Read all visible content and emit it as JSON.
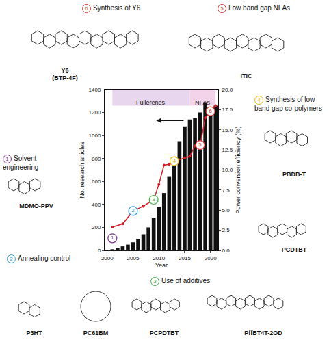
{
  "chart_data": {
    "type": "bar",
    "xlabel": "Year",
    "ylabel": "No. research articles",
    "y2label": "Power conversion efficiency (%)",
    "xlim": [
      1999.5,
      2021.5
    ],
    "xticks": [
      2000,
      2005,
      2010,
      2015,
      2020
    ],
    "ylim": [
      0,
      1400
    ],
    "yticks": [
      0,
      200,
      400,
      600,
      800,
      1000,
      1200,
      1400
    ],
    "y2lim": [
      0,
      20
    ],
    "y2ticks": [
      {
        "value": 0,
        "label": "0.0"
      },
      2.5,
      {
        "value": 5,
        "label": "5.0"
      },
      7.5,
      {
        "value": 10,
        "label": "10.0"
      },
      12.5,
      {
        "value": 15,
        "label": "15.0"
      },
      17.5,
      {
        "value": 20,
        "label": "20.0"
      }
    ],
    "grid": false,
    "series": [
      {
        "type": "bar",
        "color": "#111111",
        "x": [
          2000,
          2001,
          2002,
          2003,
          2004,
          2005,
          2006,
          2007,
          2008,
          2009,
          2010,
          2011,
          2012,
          2013,
          2014,
          2015,
          2016,
          2017,
          2018,
          2019,
          2020,
          2021
        ],
        "values": [
          5,
          10,
          20,
          35,
          50,
          70,
          100,
          140,
          200,
          280,
          380,
          500,
          640,
          800,
          950,
          1080,
          1140,
          1150,
          1200,
          1290,
          1190,
          1260
        ]
      },
      {
        "type": "line",
        "axis": "y2",
        "color": "#d0202b",
        "marker": "circle",
        "x": [
          2001,
          2003,
          2005,
          2007,
          2009,
          2010,
          2011,
          2012,
          2013,
          2015,
          2016,
          2017,
          2018,
          2019,
          2020,
          2021
        ],
        "values": [
          2.9,
          3.3,
          4.9,
          5.5,
          6.3,
          8.2,
          10.6,
          10.7,
          11.1,
          11.5,
          11.7,
          13.0,
          13.1,
          16.5,
          17.3,
          18.0
        ]
      }
    ],
    "periods": [
      {
        "label": "Fullerenes",
        "start": 2001,
        "end": 2016,
        "color": "#e8d6ee"
      },
      {
        "label": "NFAs",
        "start": 2016,
        "end": 2021,
        "color": "#f3d3ea"
      }
    ],
    "milestones": [
      {
        "label": "1",
        "x": 2001,
        "y": 1.5,
        "color": "#7b2f8e"
      },
      {
        "label": "2",
        "x": 2005,
        "y": 4.9,
        "color": "#2f9bd6"
      },
      {
        "label": "3",
        "x": 2009,
        "y": 6.3,
        "color": "#3cb043"
      },
      {
        "label": "4",
        "x": 2013,
        "y": 11.1,
        "color": "#e6b800"
      },
      {
        "label": "5",
        "x": 2018,
        "y": 13.1,
        "color": "#e0302d"
      },
      {
        "label": "6",
        "x": 2020,
        "y": 17.3,
        "color": "#e0302d"
      }
    ]
  },
  "captions": [
    {
      "number": "6",
      "text": "Synthesis of Y6",
      "color": "#e0302d"
    },
    {
      "number": "5",
      "text": "Low band gap NFAs",
      "color": "#e0302d"
    },
    {
      "number": "4",
      "text": "Synthesis of low band gap co-polymers",
      "color": "#e6b800"
    },
    {
      "number": "3",
      "text": "Use of additives",
      "color": "#3cb043"
    },
    {
      "number": "2",
      "text": "Annealing control",
      "color": "#2f9bd6"
    },
    {
      "number": "1",
      "text": "Solvent engineering",
      "color": "#7b2f8e"
    }
  ],
  "molecules": [
    {
      "name": "Y6",
      "note": "(BTP-4F)"
    },
    {
      "name": "ITIC"
    },
    {
      "name": "PBDB-T"
    },
    {
      "name": "PCDTBT"
    },
    {
      "name": "PffBT4T-2OD"
    },
    {
      "name": "PCPDTBT"
    },
    {
      "name": "P3HT"
    },
    {
      "name": "PC61BM"
    },
    {
      "name": "MDMO-PPV"
    }
  ]
}
